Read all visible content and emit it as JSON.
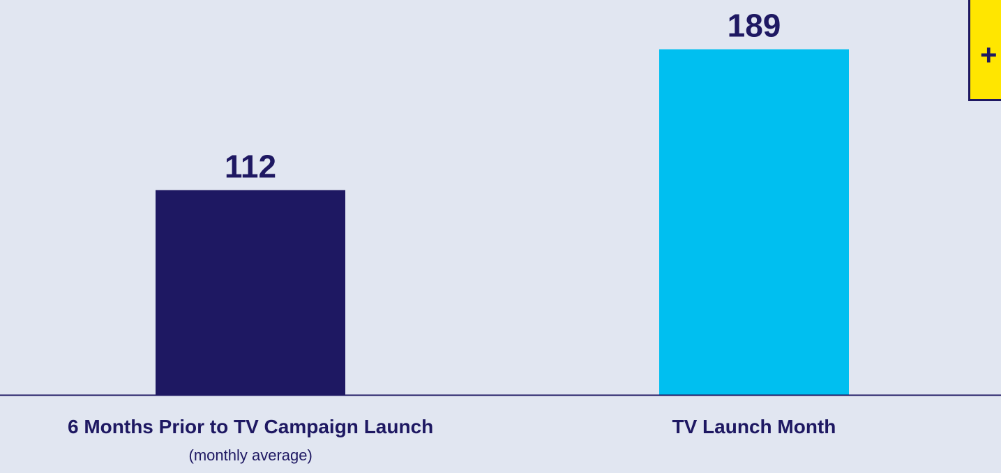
{
  "chart_data": {
    "type": "bar",
    "categories": [
      "6 Months Prior to TV Campaign Launch",
      "TV Launch Month"
    ],
    "category_sublabels": [
      "(monthly average)",
      ""
    ],
    "values": [
      112,
      189
    ],
    "data_labels": [
      "112",
      "189"
    ],
    "bar_colors": [
      "#1e1862",
      "#00bff0"
    ],
    "ylim": [
      0,
      190
    ],
    "grid": false,
    "title": "",
    "xlabel": "",
    "ylabel": ""
  },
  "callout": {
    "text": "+"
  },
  "colors": {
    "background": "#e1e6f1",
    "text": "#1e1862",
    "axis": "#1e1862",
    "callout_fill": "#ffe600"
  }
}
